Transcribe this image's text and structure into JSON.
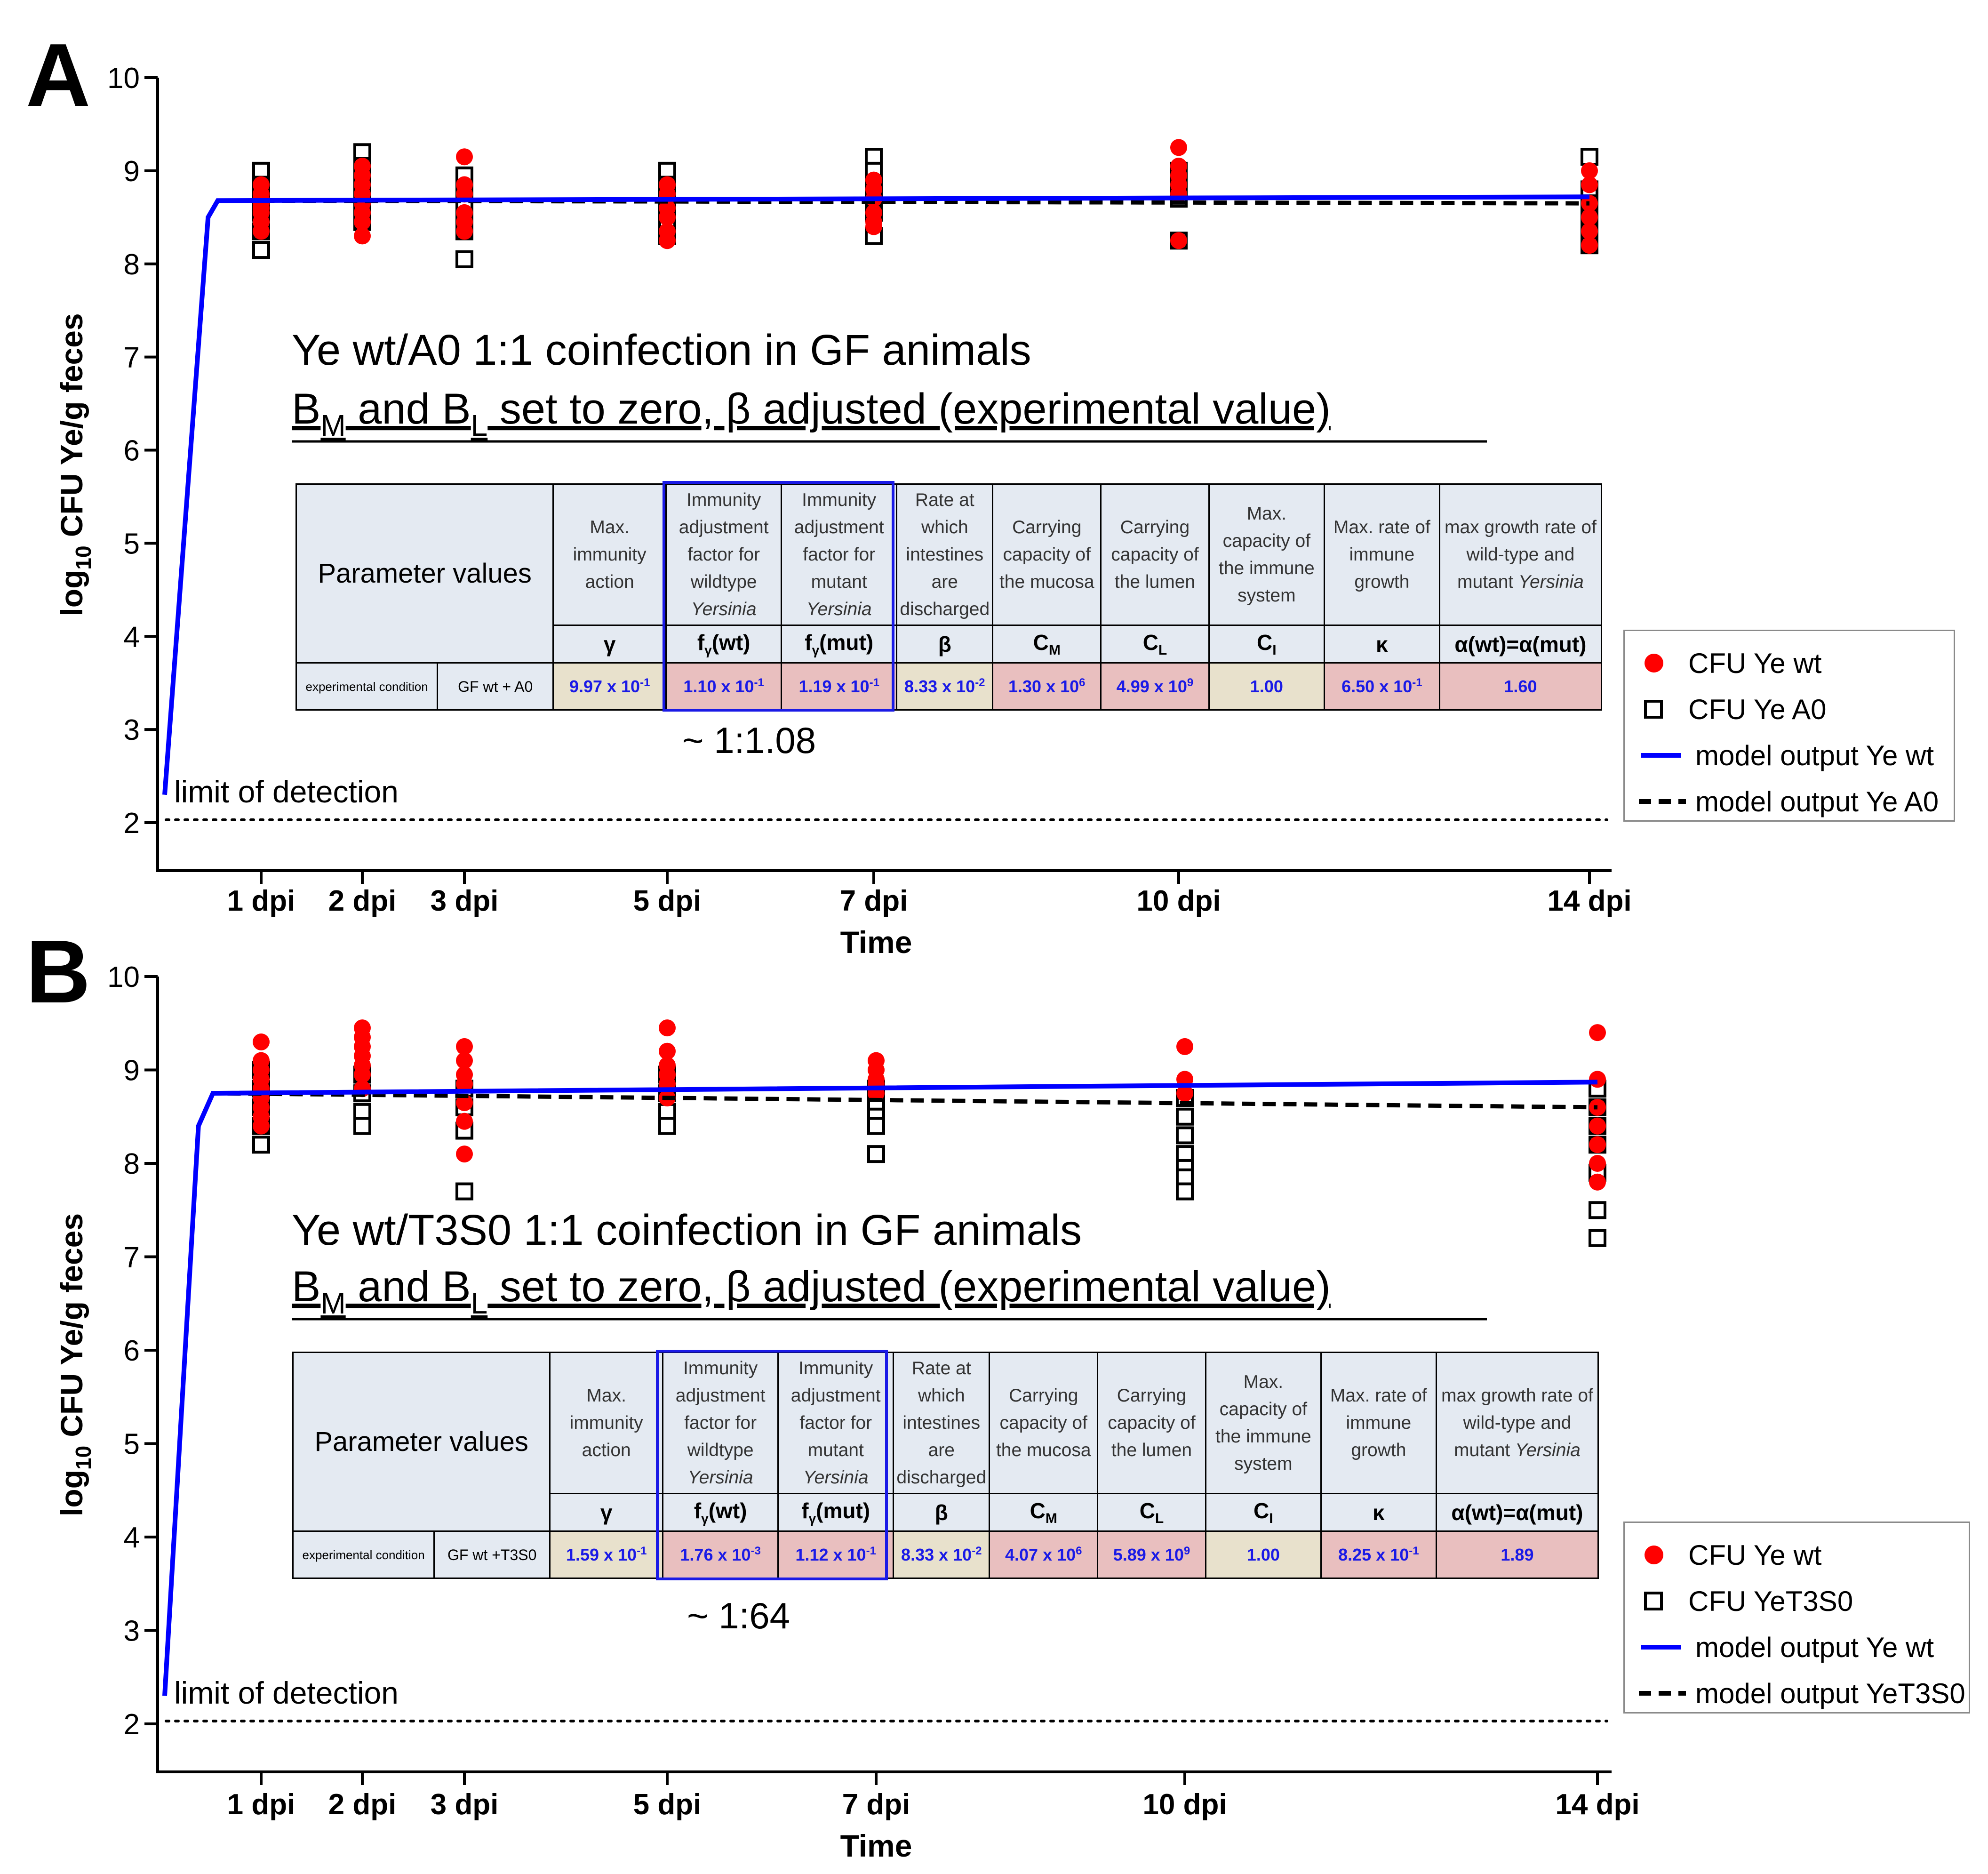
{
  "panels": [
    {
      "letter": "A",
      "ylabel_main": "log",
      "ylabel_sub": "10",
      "ylabel_rest": " CFU Ye/g feces",
      "xlabel": "Time",
      "yticks": [
        "10",
        "9",
        "8",
        "7",
        "6",
        "5",
        "4",
        "3",
        "2"
      ],
      "xticks": [
        "1 dpi",
        "2 dpi",
        "3 dpi",
        "5 dpi",
        "7 dpi",
        "10 dpi",
        "14 dpi"
      ],
      "lod_label": "limit of detection",
      "annotation_line1": "Ye wt/A0 1:1 coinfection in GF animals",
      "annotation_line2_parts": [
        "B",
        "M",
        " and B",
        "L",
        " set to zero, β adjusted (experimental value)"
      ],
      "ratio_label": "~ 1:1.08",
      "table": {
        "header_left": "Parameter values",
        "headers": [
          {
            "text": "Max. immunity action",
            "italic": ""
          },
          {
            "text": "Immunity adjustment factor for wildtype",
            "italic": "Yersinia"
          },
          {
            "text": "Immunity adjustment factor for mutant",
            "italic": "Yersinia"
          },
          {
            "text": "Rate at which intestines are discharged",
            "italic": ""
          },
          {
            "text": "Carrying capacity of the mucosa",
            "italic": ""
          },
          {
            "text": "Carrying capacity of the lumen",
            "italic": ""
          },
          {
            "text": "Max. capacity of the immune system",
            "italic": ""
          },
          {
            "text": "Max. rate of immune growth",
            "italic": ""
          },
          {
            "text": "max growth rate of wild-type and mutant",
            "italic": "Yersinia"
          }
        ],
        "symbols": [
          "γ",
          "fγ(wt)",
          "fγ(mut)",
          "β",
          "CM",
          "CL",
          "CI",
          "κ",
          "α(wt)=α(mut)"
        ],
        "condition_label": "experimental condition",
        "condition_value": "GF wt + A0",
        "values": [
          "9.97 x 10-1",
          "1.10 x 10-1",
          "1.19 x 10-1",
          "8.33 x 10-2",
          "1.30 x 106",
          "4.99 x 109",
          "1.00",
          "6.50 x 10-1",
          "1.60"
        ],
        "value_colors": [
          "tan",
          "pink",
          "pink",
          "tan",
          "pink",
          "pink",
          "tan",
          "pink",
          "pink"
        ]
      },
      "legend": [
        "CFU Ye wt",
        "CFU Ye A0",
        "model output Ye wt",
        "model output Ye A0"
      ]
    },
    {
      "letter": "B",
      "ylabel_main": "log",
      "ylabel_sub": "10",
      "ylabel_rest": " CFU Ye/g feces",
      "xlabel": "Time",
      "yticks": [
        "10",
        "9",
        "8",
        "7",
        "6",
        "5",
        "4",
        "3",
        "2"
      ],
      "xticks": [
        "1 dpi",
        "2 dpi",
        "3 dpi",
        "5 dpi",
        "7 dpi",
        "10 dpi",
        "14 dpi"
      ],
      "lod_label": "limit of detection",
      "annotation_line1": "Ye wt/T3S0 1:1 coinfection in GF animals",
      "annotation_line2_parts": [
        "B",
        "M",
        " and B",
        "L",
        " set to zero, β adjusted (experimental value)"
      ],
      "ratio_label": "~ 1:64",
      "table": {
        "header_left": "Parameter values",
        "headers": [
          {
            "text": "Max. immunity action",
            "italic": ""
          },
          {
            "text": "Immunity adjustment factor for wildtype",
            "italic": "Yersinia"
          },
          {
            "text": "Immunity adjustment factor for mutant",
            "italic": "Yersinia"
          },
          {
            "text": "Rate at which intestines are discharged",
            "italic": ""
          },
          {
            "text": "Carrying capacity of the mucosa",
            "italic": ""
          },
          {
            "text": "Carrying capacity of the lumen",
            "italic": ""
          },
          {
            "text": "Max. capacity of the immune system",
            "italic": ""
          },
          {
            "text": "Max. rate of immune growth",
            "italic": ""
          },
          {
            "text": "max growth rate of wild-type and mutant",
            "italic": "Yersinia"
          }
        ],
        "symbols": [
          "γ",
          "fγ(wt)",
          "fγ(mut)",
          "β",
          "CM",
          "CL",
          "CI",
          "κ",
          "α(wt)=α(mut)"
        ],
        "condition_label": "experimental condition",
        "condition_value": "GF wt +T3S0",
        "values": [
          "1.59 x 10-1",
          "1.76 x 10-3",
          "1.12 x 10-1",
          "8.33 x 10-2",
          "4.07 x 106",
          "5.89 x 109",
          "1.00",
          "8.25 x 10-1",
          "1.89"
        ],
        "value_colors": [
          "tan",
          "pink",
          "pink",
          "tan",
          "pink",
          "pink",
          "tan",
          "pink",
          "pink"
        ]
      },
      "legend": [
        "CFU Ye wt",
        "CFU YeT3S0",
        "model output Ye wt",
        "model output YeT3S0"
      ]
    }
  ],
  "colors": {
    "wt": "#ff0000",
    "mutant": "#000000",
    "model_wt": "#0000ff",
    "model_mut": "#000000",
    "highlight": "#1a1ae6"
  },
  "chart_data": [
    {
      "type": "scatter",
      "title": "Ye wt/A0 1:1 coinfection in GF animals",
      "xlabel": "Time",
      "ylabel": "log10 CFU Ye/g feces",
      "ylim": [
        1.5,
        10
      ],
      "x_dpi": [
        1,
        2,
        3,
        5,
        7,
        10,
        14
      ],
      "limit_of_detection": 2.05,
      "series": [
        {
          "name": "CFU Ye wt",
          "marker": "filled-circle",
          "points": {
            "1": [
              8.85,
              8.75,
              8.65,
              8.55,
              8.45,
              8.35,
              8.6,
              8.7
            ],
            "2": [
              9.05,
              8.95,
              8.85,
              8.75,
              8.65,
              8.55,
              8.45,
              8.3
            ],
            "3": [
              9.15,
              8.85,
              8.75,
              8.55,
              8.45,
              8.35
            ],
            "5": [
              8.85,
              8.75,
              8.6,
              8.5,
              8.35,
              8.25
            ],
            "7": [
              8.9,
              8.8,
              8.7,
              8.55,
              8.45,
              8.4
            ],
            "10": [
              9.25,
              9.05,
              8.95,
              8.85,
              8.75,
              8.25
            ],
            "14": [
              9.0,
              8.85,
              8.65,
              8.5,
              8.35,
              8.2
            ]
          }
        },
        {
          "name": "CFU Ye A0",
          "marker": "open-square",
          "points": {
            "1": [
              9.0,
              8.85,
              8.7,
              8.55,
              8.35,
              8.15
            ],
            "2": [
              9.2,
              9.05,
              8.9,
              8.75,
              8.6,
              8.45
            ],
            "3": [
              8.95,
              8.8,
              8.65,
              8.5,
              8.35,
              8.05
            ],
            "5": [
              9.0,
              8.85,
              8.7,
              8.55,
              8.4,
              8.3
            ],
            "7": [
              9.15,
              9.0,
              8.85,
              8.7,
              8.55,
              8.3
            ],
            "10": [
              9.0,
              8.9,
              8.8,
              8.7,
              8.25
            ],
            "14": [
              9.15,
              8.8,
              8.65,
              8.5,
              8.35,
              8.2
            ]
          }
        },
        {
          "name": "model output Ye wt",
          "style": "solid",
          "x": [
            0,
            0.45,
            0.55,
            14
          ],
          "y": [
            2.3,
            8.5,
            8.68,
            8.72
          ]
        },
        {
          "name": "model output Ye A0",
          "style": "dashed",
          "x": [
            0,
            0.45,
            0.55,
            14
          ],
          "y": [
            2.3,
            8.5,
            8.68,
            8.65
          ]
        }
      ]
    },
    {
      "type": "scatter",
      "title": "Ye wt/T3S0 1:1 coinfection in GF animals",
      "xlabel": "Time",
      "ylabel": "log10 CFU Ye/g feces",
      "ylim": [
        1.5,
        10
      ],
      "x_dpi": [
        1,
        2,
        3,
        5,
        7,
        10,
        14
      ],
      "limit_of_detection": 2.05,
      "series": [
        {
          "name": "CFU Ye wt",
          "marker": "filled-circle",
          "points": {
            "1": [
              9.3,
              9.1,
              9.0,
              8.9,
              8.8,
              8.7,
              8.6,
              8.5,
              8.4
            ],
            "2": [
              9.45,
              9.35,
              9.25,
              9.15,
              9.05,
              8.95,
              8.8
            ],
            "3": [
              9.25,
              9.1,
              8.95,
              8.85,
              8.65,
              8.45,
              8.1
            ],
            "5": [
              9.45,
              9.2,
              9.05,
              8.95,
              8.85,
              8.7
            ],
            "7": [
              9.1,
              9.0,
              8.9,
              8.85,
              8.75
            ],
            "10": [
              9.25,
              8.9,
              8.75
            ],
            "14": [
              9.4,
              8.9,
              8.6,
              8.4,
              8.2,
              8.0,
              7.8
            ]
          }
        },
        {
          "name": "CFU YeT3S0",
          "marker": "open-square",
          "points": {
            "1": [
              9.0,
              8.8,
              8.6,
              8.4,
              8.2
            ],
            "2": [
              8.95,
              8.75,
              8.55,
              8.4
            ],
            "3": [
              8.8,
              8.6,
              8.35,
              7.7
            ],
            "5": [
              8.95,
              8.75,
              8.55,
              8.4
            ],
            "7": [
              8.8,
              8.65,
              8.5,
              8.4,
              8.1
            ],
            "10": [
              8.7,
              8.5,
              8.3,
              8.1,
              7.95,
              7.85,
              7.7
            ],
            "14": [
              8.8,
              8.6,
              8.4,
              8.2,
              7.9,
              7.5,
              7.2
            ]
          }
        },
        {
          "name": "model output Ye wt",
          "style": "solid",
          "x": [
            0,
            0.35,
            0.5,
            14
          ],
          "y": [
            2.3,
            8.4,
            8.75,
            8.87
          ]
        },
        {
          "name": "model output YeT3S0",
          "style": "dashed",
          "x": [
            0,
            0.35,
            0.5,
            14
          ],
          "y": [
            2.3,
            8.4,
            8.75,
            8.6
          ]
        }
      ]
    }
  ]
}
